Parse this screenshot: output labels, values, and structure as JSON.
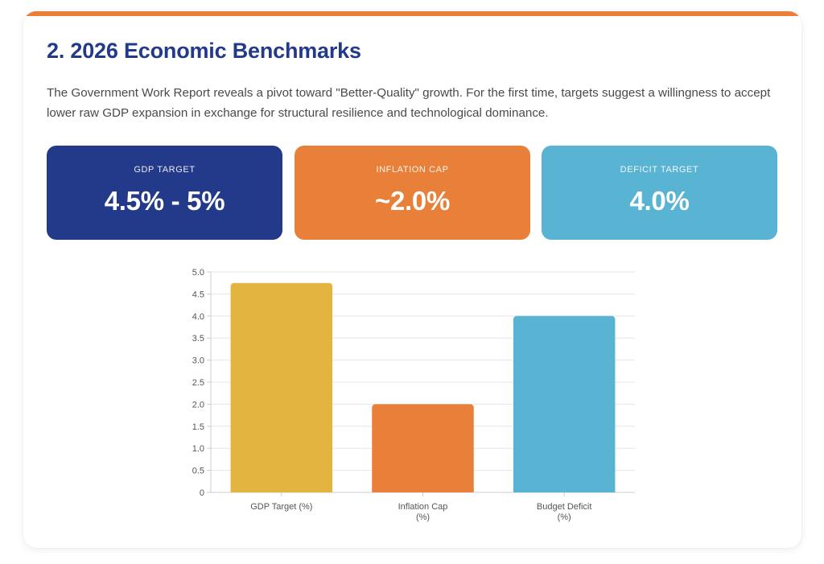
{
  "section": {
    "title": "2. 2026 Economic Benchmarks",
    "intro": "The Government Work Report reveals a pivot toward \"Better-Quality\" growth. For the first time, targets suggest a willingness to accept lower raw GDP expansion in exchange for structural resilience and technological dominance."
  },
  "stats": [
    {
      "label": "GDP TARGET",
      "value": "4.5% - 5%"
    },
    {
      "label": "INFLATION CAP",
      "value": "~2.0%"
    },
    {
      "label": "DEFICIT TARGET",
      "value": "4.0%"
    }
  ],
  "colors": {
    "accent": "#E8803A",
    "title": "#233A8A",
    "navy": "#233A8A",
    "orange": "#E8803A",
    "sky": "#58B4D2",
    "gold": "#E3B440",
    "grid": "#E6E6E6",
    "axis": "#CCCCCC"
  },
  "chart_data": {
    "type": "bar",
    "categories": [
      [
        "GDP Target (%)"
      ],
      [
        "Inflation Cap",
        "(%)"
      ],
      [
        "Budget Deficit",
        "(%)"
      ]
    ],
    "values": [
      4.75,
      2.0,
      4.0
    ],
    "bar_colors": [
      "#E3B440",
      "#E8803A",
      "#58B4D2"
    ],
    "yticks": [
      "0",
      "0.5",
      "1.0",
      "1.5",
      "2.0",
      "2.5",
      "3.0",
      "3.5",
      "4.0",
      "4.5",
      "5.0"
    ],
    "ylim": [
      0,
      5
    ],
    "grid": true,
    "legend": "none",
    "title": "",
    "xlabel": "",
    "ylabel": ""
  }
}
